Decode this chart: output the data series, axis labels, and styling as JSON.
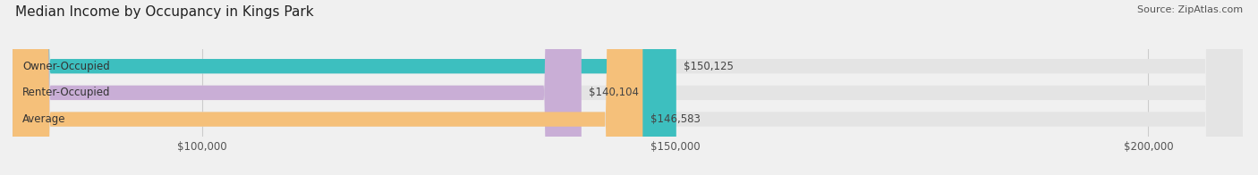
{
  "title": "Median Income by Occupancy in Kings Park",
  "source": "Source: ZipAtlas.com",
  "categories": [
    "Owner-Occupied",
    "Renter-Occupied",
    "Average"
  ],
  "values": [
    150125,
    140104,
    146583
  ],
  "bar_colors": [
    "#3dbfbf",
    "#c9aed6",
    "#f5c07a"
  ],
  "bar_labels": [
    "$150,125",
    "$140,104",
    "$146,583"
  ],
  "xlim": [
    80000,
    210000
  ],
  "xticks": [
    100000,
    150000,
    200000
  ],
  "xtick_labels": [
    "$100,000",
    "$150,000",
    "$200,000"
  ],
  "background_color": "#f0f0f0",
  "bar_bg_color": "#e4e4e4",
  "title_fontsize": 11,
  "source_fontsize": 8,
  "label_fontsize": 8.5,
  "tick_fontsize": 8.5,
  "bar_height": 0.55,
  "figsize": [
    14.06,
    1.96
  ],
  "dpi": 100
}
